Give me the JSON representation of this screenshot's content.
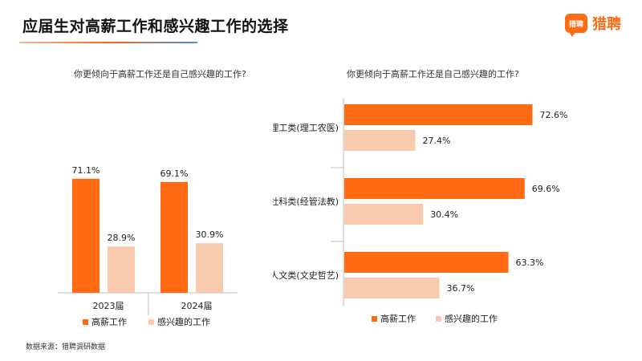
{
  "title": "应届生对高薪工作和感兴趣工作的选择",
  "brand": {
    "icon_label": "猎聘",
    "name": "猎聘",
    "color": "#ff6a13"
  },
  "source": "数据来源：猎聘调研数据",
  "colors": {
    "high_salary": "#ff6a13",
    "interest": "#f7c9ad"
  },
  "chart_data": [
    {
      "type": "bar",
      "orientation": "vertical",
      "title": "你更倾向于高薪工作还是自己感兴趣的工作?",
      "categories": [
        "2023届",
        "2024届"
      ],
      "series": [
        {
          "name": "高薪工作",
          "values": [
            71.1,
            69.1
          ],
          "labels": [
            "71.1%",
            "69.1%"
          ]
        },
        {
          "name": "感兴趣的工作",
          "values": [
            28.9,
            30.9
          ],
          "labels": [
            "28.9%",
            "30.9%"
          ]
        }
      ],
      "unit": "%",
      "ylim": [
        0,
        100
      ],
      "grid": false,
      "legend": "bottom"
    },
    {
      "type": "bar",
      "orientation": "horizontal",
      "title": "你更倾向于高薪工作还是自己感兴趣的工作?",
      "categories": [
        "理工类(理工农医)",
        "社科类(经管法教)",
        "人文类(文史哲艺)"
      ],
      "series": [
        {
          "name": "高薪工作",
          "values": [
            72.6,
            69.6,
            63.3
          ],
          "labels": [
            "72.6%",
            "69.6%",
            "63.3%"
          ]
        },
        {
          "name": "感兴趣的工作",
          "values": [
            27.4,
            30.4,
            36.7
          ],
          "labels": [
            "27.4%",
            "30.4%",
            "36.7%"
          ]
        }
      ],
      "unit": "%",
      "xlim": [
        0,
        100
      ],
      "grid": false,
      "legend": "bottom"
    }
  ]
}
